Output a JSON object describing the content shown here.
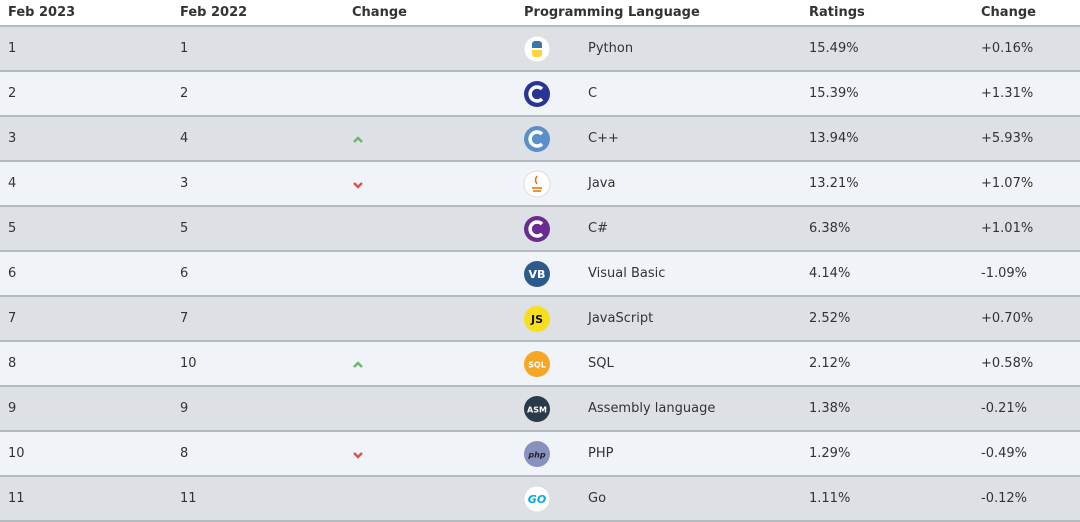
{
  "table": {
    "header": [
      "Feb 2023",
      "Feb 2022",
      "Change",
      "Programming Language",
      "Ratings",
      "Change"
    ],
    "rows": [
      {
        "cells": [
          "1",
          "1",
          "Python",
          "15.49%",
          "+0.16%"
        ]
      },
      {
        "cells": [
          "2",
          "2",
          "C",
          "15.39%",
          "+1.31%"
        ]
      },
      {
        "cells": [
          "3",
          "4",
          "C++",
          "13.94%",
          "+5.93%"
        ],
        "trend": "up"
      },
      {
        "cells": [
          "4",
          "3",
          "Java",
          "13.21%",
          "+1.07%"
        ],
        "trend": "down"
      },
      {
        "cells": [
          "5",
          "5",
          "C#",
          "6.38%",
          "+1.01%"
        ]
      },
      {
        "cells": [
          "6",
          "6",
          "Visual Basic",
          "4.14%",
          "-1.09%"
        ],
        "icon": "VB"
      },
      {
        "cells": [
          "7",
          "7",
          "JavaScript",
          "2.52%",
          "+0.70%"
        ],
        "icon": "JS"
      },
      {
        "cells": [
          "8",
          "10",
          "SQL",
          "2.12%",
          "+0.58%"
        ],
        "trend": "up",
        "icon": "SQL"
      },
      {
        "cells": [
          "9",
          "9",
          "Assembly language",
          "1.38%",
          "-0.21%"
        ],
        "icon": "ASM"
      },
      {
        "cells": [
          "10",
          "8",
          "PHP",
          "1.29%",
          "-0.49%"
        ],
        "trend": "down",
        "icon": "php"
      },
      {
        "cells": [
          "11",
          "11",
          "Go",
          "1.11%",
          "-0.12%"
        ],
        "icon": "GO"
      }
    ]
  }
}
